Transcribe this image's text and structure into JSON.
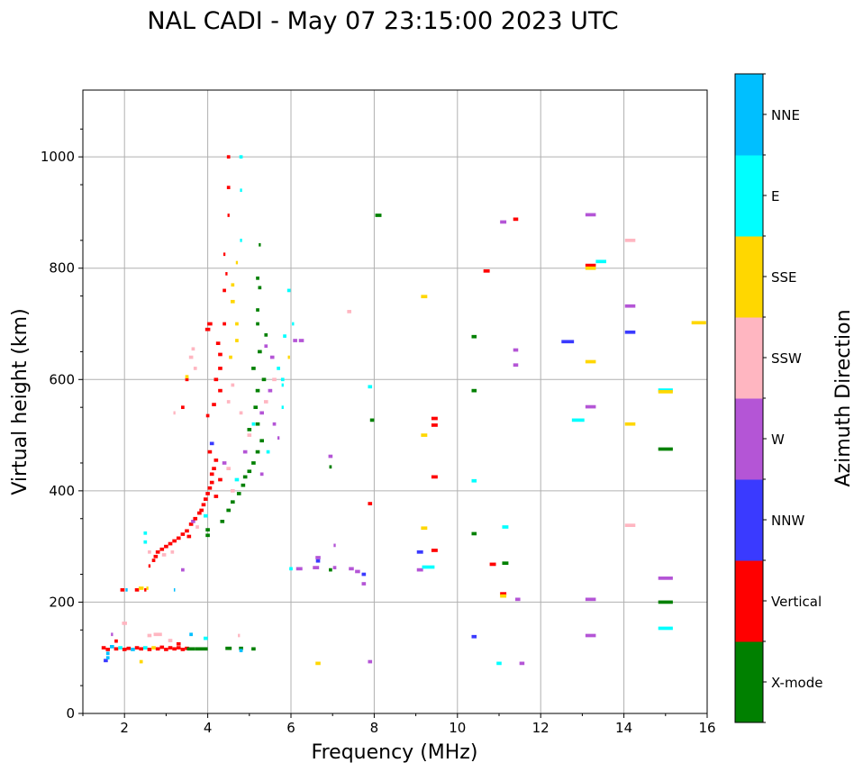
{
  "chart_data": {
    "type": "scatter",
    "title": "NAL CADI - May 07 23:15:00 2023 UTC",
    "xlabel": "Frequency (MHz)",
    "ylabel": "Virtual height (km)",
    "xlim": [
      1,
      16
    ],
    "ylim": [
      0,
      1120
    ],
    "xticks": [
      2,
      4,
      6,
      8,
      10,
      12,
      14,
      16
    ],
    "yticks": [
      0,
      200,
      400,
      600,
      800,
      1000
    ],
    "grid": true,
    "colorbar": {
      "label": "Azimuth Direction",
      "categories": [
        "X-mode",
        "Vertical",
        "NNW",
        "W",
        "SSW",
        "SSE",
        "E",
        "NNE"
      ],
      "colors": [
        "#008000",
        "#ff0000",
        "#3a3aff",
        "#b455d6",
        "#ffb6c1",
        "#ffd700",
        "#00ffff",
        "#00bfff"
      ]
    },
    "point_format": [
      "frequency_MHz",
      "height_km",
      "category_index",
      "width_MHz"
    ],
    "points": [
      [
        1.5,
        118,
        1,
        0.1
      ],
      [
        1.6,
        115,
        1,
        0.1
      ],
      [
        1.7,
        120,
        7,
        0.1
      ],
      [
        1.8,
        116,
        1,
        0.1
      ],
      [
        1.9,
        118,
        6,
        0.1
      ],
      [
        2.0,
        115,
        1,
        0.1
      ],
      [
        2.1,
        117,
        1,
        0.1
      ],
      [
        2.2,
        115,
        7,
        0.1
      ],
      [
        2.3,
        118,
        1,
        0.1
      ],
      [
        2.4,
        116,
        1,
        0.1
      ],
      [
        2.5,
        118,
        6,
        0.1
      ],
      [
        2.6,
        115,
        1,
        0.1
      ],
      [
        2.7,
        118,
        5,
        0.1
      ],
      [
        2.8,
        116,
        1,
        0.1
      ],
      [
        2.9,
        119,
        1,
        0.1
      ],
      [
        3.0,
        115,
        1,
        0.1
      ],
      [
        3.1,
        118,
        1,
        0.1
      ],
      [
        3.2,
        116,
        1,
        0.1
      ],
      [
        3.3,
        118,
        1,
        0.1
      ],
      [
        3.4,
        115,
        1,
        0.1
      ],
      [
        3.5,
        117,
        1,
        0.1
      ],
      [
        3.6,
        116,
        0,
        0.2
      ],
      [
        3.8,
        116,
        0,
        0.2
      ],
      [
        3.95,
        116,
        0,
        0.1
      ],
      [
        4.5,
        117,
        0,
        0.15
      ],
      [
        4.8,
        117,
        0,
        0.1
      ],
      [
        5.1,
        116,
        0,
        0.1
      ],
      [
        4.8,
        113,
        7,
        0.08
      ],
      [
        1.55,
        95,
        2,
        0.1
      ],
      [
        1.6,
        100,
        7,
        0.08
      ],
      [
        1.6,
        108,
        7,
        0.08
      ],
      [
        1.7,
        142,
        3,
        0.05
      ],
      [
        1.8,
        130,
        1,
        0.08
      ],
      [
        2.0,
        162,
        4,
        0.12
      ],
      [
        2.4,
        93,
        5,
        0.08
      ],
      [
        2.6,
        140,
        4,
        0.1
      ],
      [
        2.8,
        142,
        4,
        0.2
      ],
      [
        3.1,
        131,
        4,
        0.1
      ],
      [
        3.6,
        142,
        7,
        0.08
      ],
      [
        3.95,
        135,
        6,
        0.1
      ],
      [
        4.75,
        140,
        4,
        0.05
      ],
      [
        3.3,
        125,
        1,
        0.1
      ],
      [
        1.95,
        222,
        1,
        0.1
      ],
      [
        2.05,
        222,
        7,
        0.05
      ],
      [
        2.3,
        222,
        1,
        0.1
      ],
      [
        2.4,
        225,
        5,
        0.12
      ],
      [
        2.5,
        222,
        1,
        0.05
      ],
      [
        2.55,
        225,
        5,
        0.05
      ],
      [
        3.2,
        222,
        7,
        0.03
      ],
      [
        2.5,
        324,
        6,
        0.08
      ],
      [
        2.5,
        308,
        6,
        0.08
      ],
      [
        2.6,
        265,
        1,
        0.05
      ],
      [
        2.6,
        290,
        4,
        0.08
      ],
      [
        2.7,
        275,
        1,
        0.08
      ],
      [
        2.75,
        282,
        1,
        0.1
      ],
      [
        2.8,
        290,
        1,
        0.1
      ],
      [
        2.9,
        295,
        1,
        0.1
      ],
      [
        2.95,
        285,
        4,
        0.1
      ],
      [
        3.0,
        300,
        1,
        0.1
      ],
      [
        3.1,
        305,
        1,
        0.1
      ],
      [
        3.15,
        290,
        4,
        0.08
      ],
      [
        3.2,
        310,
        1,
        0.1
      ],
      [
        3.3,
        315,
        1,
        0.1
      ],
      [
        3.4,
        322,
        1,
        0.1
      ],
      [
        3.5,
        328,
        1,
        0.1
      ],
      [
        3.55,
        318,
        1,
        0.1
      ],
      [
        3.6,
        340,
        1,
        0.1
      ],
      [
        3.65,
        345,
        3,
        0.1
      ],
      [
        3.7,
        350,
        1,
        0.1
      ],
      [
        3.75,
        335,
        4,
        0.08
      ],
      [
        3.8,
        360,
        1,
        0.1
      ],
      [
        3.85,
        365,
        1,
        0.1
      ],
      [
        3.9,
        375,
        1,
        0.1
      ],
      [
        3.95,
        355,
        6,
        0.1
      ],
      [
        3.95,
        385,
        1,
        0.1
      ],
      [
        4.0,
        395,
        1,
        0.1
      ],
      [
        4.05,
        405,
        1,
        0.1
      ],
      [
        4.1,
        415,
        1,
        0.1
      ],
      [
        4.1,
        430,
        1,
        0.1
      ],
      [
        4.15,
        440,
        1,
        0.1
      ],
      [
        4.2,
        455,
        1,
        0.1
      ],
      [
        4.05,
        470,
        1,
        0.1
      ],
      [
        4.1,
        485,
        2,
        0.1
      ],
      [
        4.2,
        390,
        1,
        0.1
      ],
      [
        4.3,
        420,
        1,
        0.1
      ],
      [
        4.4,
        450,
        3,
        0.1
      ],
      [
        4.5,
        440,
        4,
        0.1
      ],
      [
        3.4,
        258,
        3,
        0.08
      ],
      [
        4.0,
        330,
        0,
        0.1
      ],
      [
        4.0,
        320,
        0,
        0.1
      ],
      [
        4.35,
        345,
        0,
        0.1
      ],
      [
        4.5,
        365,
        0,
        0.1
      ],
      [
        4.6,
        380,
        0,
        0.1
      ],
      [
        4.75,
        395,
        0,
        0.1
      ],
      [
        4.85,
        410,
        0,
        0.1
      ],
      [
        4.9,
        425,
        0,
        0.1
      ],
      [
        5.0,
        435,
        0,
        0.1
      ],
      [
        5.1,
        450,
        0,
        0.1
      ],
      [
        5.2,
        470,
        0,
        0.1
      ],
      [
        5.3,
        490,
        0,
        0.1
      ],
      [
        5.2,
        520,
        0,
        0.1
      ],
      [
        5.15,
        550,
        0,
        0.1
      ],
      [
        5.2,
        580,
        0,
        0.1
      ],
      [
        5.1,
        620,
        0,
        0.1
      ],
      [
        5.25,
        650,
        0,
        0.1
      ],
      [
        5.2,
        700,
        0,
        0.08
      ],
      [
        5.2,
        725,
        0,
        0.08
      ],
      [
        5.25,
        765,
        0,
        0.08
      ],
      [
        5.2,
        782,
        0,
        0.08
      ],
      [
        5.25,
        842,
        0,
        0.05
      ],
      [
        5.0,
        510,
        0,
        0.1
      ],
      [
        5.35,
        600,
        0,
        0.1
      ],
      [
        5.4,
        680,
        0,
        0.08
      ],
      [
        4.6,
        400,
        4,
        0.1
      ],
      [
        4.7,
        420,
        6,
        0.1
      ],
      [
        4.9,
        470,
        3,
        0.1
      ],
      [
        5.0,
        500,
        4,
        0.1
      ],
      [
        5.1,
        520,
        6,
        0.08
      ],
      [
        5.3,
        540,
        3,
        0.1
      ],
      [
        5.4,
        560,
        4,
        0.1
      ],
      [
        5.5,
        580,
        3,
        0.1
      ],
      [
        5.6,
        600,
        4,
        0.1
      ],
      [
        5.7,
        620,
        6,
        0.08
      ],
      [
        5.55,
        640,
        3,
        0.1
      ],
      [
        5.8,
        600,
        6,
        0.08
      ],
      [
        5.8,
        590,
        6,
        0.05
      ],
      [
        5.8,
        550,
        6,
        0.05
      ],
      [
        5.6,
        520,
        3,
        0.08
      ],
      [
        5.7,
        495,
        3,
        0.05
      ],
      [
        5.45,
        470,
        6,
        0.08
      ],
      [
        5.3,
        430,
        3,
        0.08
      ],
      [
        5.4,
        660,
        3,
        0.08
      ],
      [
        5.95,
        640,
        5,
        0.05
      ],
      [
        5.85,
        678,
        6,
        0.08
      ],
      [
        4.2,
        600,
        1,
        0.1
      ],
      [
        4.3,
        580,
        1,
        0.1
      ],
      [
        4.15,
        555,
        1,
        0.1
      ],
      [
        4.0,
        535,
        1,
        0.08
      ],
      [
        4.05,
        700,
        1,
        0.12
      ],
      [
        4.0,
        690,
        1,
        0.12
      ],
      [
        4.3,
        645,
        1,
        0.1
      ],
      [
        4.3,
        620,
        1,
        0.1
      ],
      [
        4.25,
        665,
        1,
        0.1
      ],
      [
        4.4,
        700,
        1,
        0.08
      ],
      [
        4.4,
        760,
        1,
        0.08
      ],
      [
        4.45,
        790,
        1,
        0.05
      ],
      [
        4.4,
        825,
        1,
        0.05
      ],
      [
        4.5,
        945,
        1,
        0.08
      ],
      [
        4.5,
        1000,
        1,
        0.08
      ],
      [
        4.5,
        895,
        1,
        0.05
      ],
      [
        3.5,
        600,
        1,
        0.08
      ],
      [
        3.4,
        550,
        1,
        0.08
      ],
      [
        3.6,
        640,
        4,
        0.1
      ],
      [
        3.65,
        655,
        4,
        0.08
      ],
      [
        3.7,
        620,
        4,
        0.08
      ],
      [
        3.5,
        605,
        5,
        0.08
      ],
      [
        3.2,
        540,
        4,
        0.05
      ],
      [
        4.6,
        740,
        5,
        0.1
      ],
      [
        4.6,
        770,
        5,
        0.08
      ],
      [
        4.55,
        640,
        5,
        0.08
      ],
      [
        4.7,
        700,
        5,
        0.08
      ],
      [
        4.7,
        670,
        5,
        0.08
      ],
      [
        4.8,
        1000,
        6,
        0.08
      ],
      [
        4.8,
        940,
        6,
        0.05
      ],
      [
        4.8,
        850,
        6,
        0.05
      ],
      [
        4.7,
        810,
        5,
        0.05
      ],
      [
        4.6,
        590,
        4,
        0.08
      ],
      [
        4.8,
        540,
        4,
        0.08
      ],
      [
        4.5,
        560,
        4,
        0.08
      ],
      [
        5.95,
        760,
        6,
        0.08
      ],
      [
        6.05,
        700,
        6,
        0.05
      ],
      [
        6.1,
        670,
        3,
        0.1
      ],
      [
        6.25,
        670,
        3,
        0.12
      ],
      [
        6.0,
        260,
        6,
        0.08
      ],
      [
        6.2,
        260,
        3,
        0.15
      ],
      [
        6.6,
        262,
        3,
        0.15
      ],
      [
        6.65,
        280,
        3,
        0.12
      ],
      [
        6.65,
        274,
        2,
        0.1
      ],
      [
        6.95,
        462,
        3,
        0.1
      ],
      [
        6.95,
        443,
        0,
        0.06
      ],
      [
        6.95,
        258,
        0,
        0.08
      ],
      [
        7.05,
        302,
        3,
        0.05
      ],
      [
        7.05,
        262,
        3,
        0.08
      ],
      [
        7.4,
        722,
        4,
        0.1
      ],
      [
        7.45,
        260,
        3,
        0.12
      ],
      [
        7.6,
        255,
        3,
        0.12
      ],
      [
        7.75,
        250,
        2,
        0.1
      ],
      [
        7.75,
        233,
        3,
        0.1
      ],
      [
        6.65,
        90,
        5,
        0.12
      ],
      [
        8.1,
        895,
        0,
        0.15
      ],
      [
        7.9,
        587,
        6,
        0.1
      ],
      [
        7.95,
        527,
        0,
        0.1
      ],
      [
        7.9,
        377,
        1,
        0.1
      ],
      [
        7.9,
        93,
        3,
        0.1
      ],
      [
        9.2,
        749,
        5,
        0.15
      ],
      [
        9.2,
        500,
        5,
        0.15
      ],
      [
        9.45,
        530,
        1,
        0.15
      ],
      [
        9.45,
        518,
        1,
        0.15
      ],
      [
        9.45,
        425,
        1,
        0.15
      ],
      [
        9.2,
        333,
        5,
        0.15
      ],
      [
        9.1,
        290,
        2,
        0.15
      ],
      [
        9.45,
        293,
        1,
        0.15
      ],
      [
        9.1,
        258,
        3,
        0.15
      ],
      [
        9.3,
        263,
        6,
        0.3
      ],
      [
        10.4,
        677,
        0,
        0.12
      ],
      [
        10.4,
        580,
        0,
        0.12
      ],
      [
        10.4,
        418,
        6,
        0.12
      ],
      [
        10.4,
        323,
        0,
        0.12
      ],
      [
        10.4,
        138,
        2,
        0.12
      ],
      [
        10.7,
        795,
        1,
        0.15
      ],
      [
        10.85,
        268,
        1,
        0.15
      ],
      [
        11.0,
        90,
        6,
        0.12
      ],
      [
        11.1,
        883,
        3,
        0.15
      ],
      [
        11.4,
        888,
        1,
        0.12
      ],
      [
        11.4,
        653,
        3,
        0.12
      ],
      [
        11.4,
        626,
        3,
        0.12
      ],
      [
        11.15,
        335,
        6,
        0.15
      ],
      [
        11.15,
        270,
        0,
        0.15
      ],
      [
        11.1,
        215,
        1,
        0.15
      ],
      [
        11.1,
        211,
        5,
        0.15
      ],
      [
        11.45,
        205,
        3,
        0.12
      ],
      [
        11.55,
        90,
        3,
        0.12
      ],
      [
        12.65,
        668,
        2,
        0.3
      ],
      [
        12.9,
        527,
        6,
        0.3
      ],
      [
        13.2,
        896,
        3,
        0.25
      ],
      [
        13.2,
        805,
        1,
        0.25
      ],
      [
        13.2,
        800,
        5,
        0.25
      ],
      [
        13.45,
        812,
        6,
        0.25
      ],
      [
        13.2,
        632,
        5,
        0.25
      ],
      [
        13.2,
        551,
        3,
        0.25
      ],
      [
        13.2,
        205,
        3,
        0.25
      ],
      [
        13.2,
        140,
        3,
        0.25
      ],
      [
        14.15,
        850,
        4,
        0.25
      ],
      [
        14.15,
        732,
        3,
        0.25
      ],
      [
        14.15,
        685,
        2,
        0.25
      ],
      [
        14.15,
        520,
        5,
        0.25
      ],
      [
        14.15,
        338,
        4,
        0.25
      ],
      [
        15.0,
        581,
        6,
        0.35
      ],
      [
        15.0,
        578,
        5,
        0.35
      ],
      [
        15.0,
        475,
        0,
        0.35
      ],
      [
        15.0,
        243,
        3,
        0.35
      ],
      [
        15.0,
        200,
        0,
        0.35
      ],
      [
        15.0,
        153,
        6,
        0.35
      ],
      [
        15.8,
        702,
        5,
        0.35
      ]
    ]
  }
}
